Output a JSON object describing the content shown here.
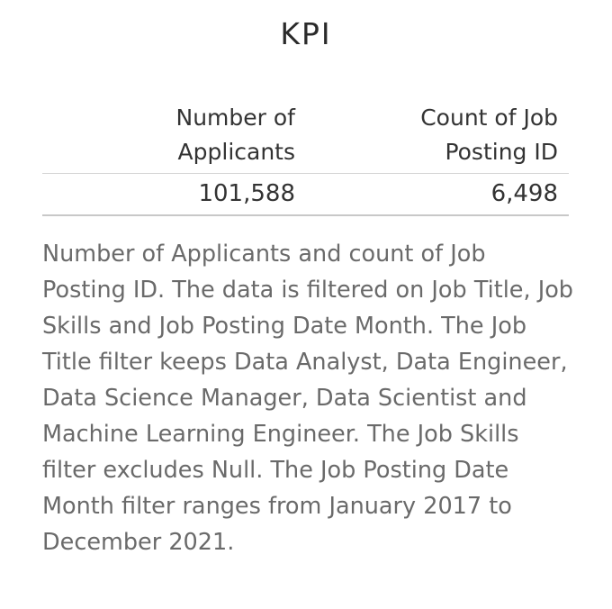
{
  "title": "KPI",
  "table": {
    "columns": [
      "Number of Applicants",
      "Count of Job Posting ID"
    ],
    "rows": [
      [
        "101,588",
        "6,498"
      ]
    ]
  },
  "description": "Number of Applicants and count of Job Posting ID. The data is filtered on Job Title, Job Skills and Job Posting Date Month. The Job Title filter keeps Data Analyst, Data Engineer, Data Science Manager, Data Scientist and Machine Learning Engineer. The Job Skills filter excludes Null. The Job Posting Date Month filter ranges from January 2017 to December 2021.",
  "colors": {
    "title": "#2a2a2a",
    "text": "#333333",
    "description": "#6a6a6a",
    "rule": "#d4d4d4"
  }
}
